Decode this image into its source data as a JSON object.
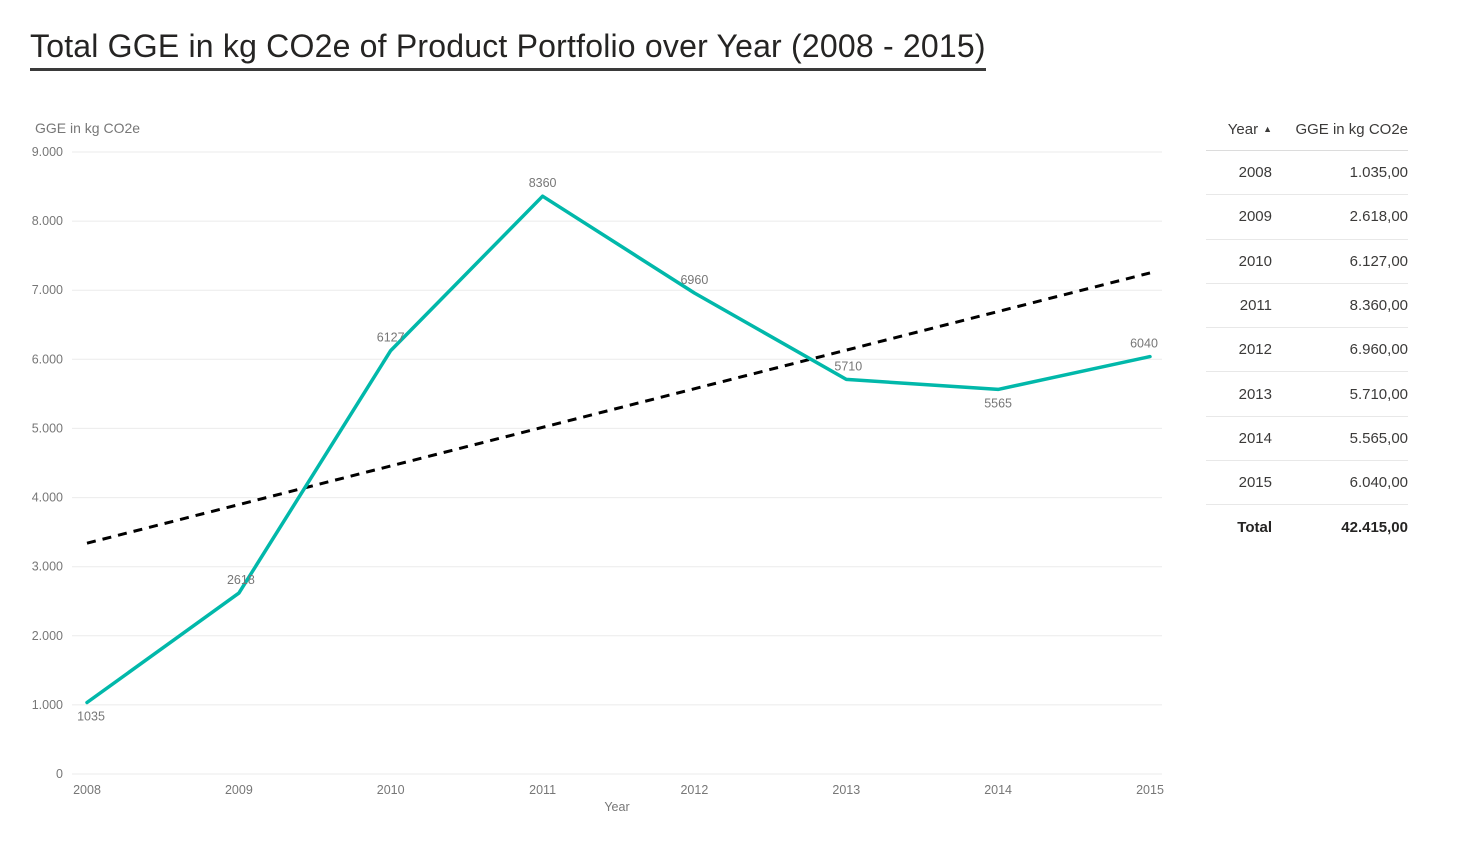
{
  "page": {
    "title": "Total GGE in kg CO2e of Product Portfolio over Year (2008 - 2015)"
  },
  "chart_data": {
    "type": "line",
    "x": [
      "2008",
      "2009",
      "2010",
      "2011",
      "2012",
      "2013",
      "2014",
      "2015"
    ],
    "series": [
      {
        "name": "GGE in kg CO2e",
        "color": "#01B8AA",
        "values": [
          1035,
          2618,
          6127,
          8360,
          6960,
          5710,
          5565,
          6040
        ]
      }
    ],
    "trendline": {
      "color": "#000000",
      "style": "dashed",
      "start_value": 3340,
      "end_value": 7250
    },
    "data_labels": {
      "show": true,
      "positions": [
        "below",
        "above",
        "above",
        "above",
        "above",
        "above",
        "below",
        "above"
      ],
      "dx": [
        4,
        2,
        0,
        0,
        0,
        2,
        0,
        -6
      ]
    },
    "xlabel": "Year",
    "ylabel": "GGE in kg CO2e",
    "ylim": [
      0,
      9000
    ],
    "ytick_step": 1000,
    "ytick_labels": [
      "0",
      "1.000",
      "2.000",
      "3.000",
      "4.000",
      "5.000",
      "6.000",
      "7.000",
      "8.000",
      "9.000"
    ],
    "grid": true,
    "legend": "none",
    "grid_color": "#ebebeb",
    "axis_text_color": "#777777"
  },
  "table": {
    "sort_icon": "▲",
    "columns": [
      {
        "label": "Year"
      },
      {
        "label": "GGE in kg CO2e"
      }
    ],
    "rows": [
      {
        "year": "2008",
        "value": "1.035,00"
      },
      {
        "year": "2009",
        "value": "2.618,00"
      },
      {
        "year": "2010",
        "value": "6.127,00"
      },
      {
        "year": "2011",
        "value": "8.360,00"
      },
      {
        "year": "2012",
        "value": "6.960,00"
      },
      {
        "year": "2013",
        "value": "5.710,00"
      },
      {
        "year": "2014",
        "value": "5.565,00"
      },
      {
        "year": "2015",
        "value": "6.040,00"
      }
    ],
    "total": {
      "label": "Total",
      "value": "42.415,00"
    }
  }
}
